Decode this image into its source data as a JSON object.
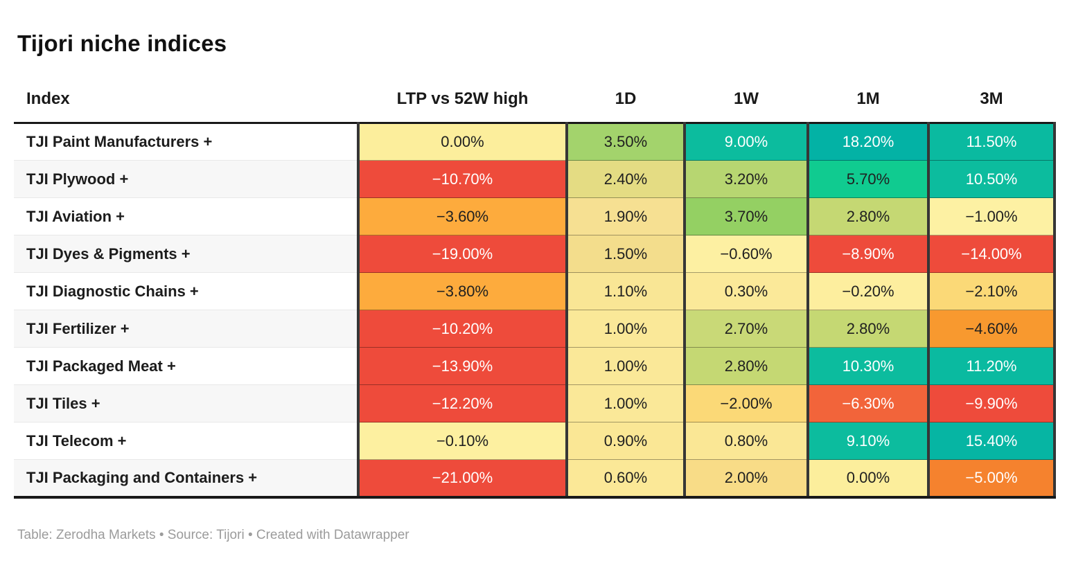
{
  "title": "Tijori niche indices",
  "footer": "Table: Zerodha Markets • Source: Tijori • Created with Datawrapper",
  "table": {
    "columns": [
      "Index",
      "LTP vs 52W high",
      "1D",
      "1W",
      "1M",
      "3M"
    ],
    "rows": [
      {
        "label": "TJI Paint Manufacturers +",
        "cells": [
          {
            "text": "0.00%",
            "bg": "#fcee9c",
            "fg": "#202020"
          },
          {
            "text": "3.50%",
            "bg": "#a3d36c",
            "fg": "#202020"
          },
          {
            "text": "9.00%",
            "bg": "#0cbc9e",
            "fg": "#ffffff"
          },
          {
            "text": "18.20%",
            "bg": "#03b2a5",
            "fg": "#ffffff"
          },
          {
            "text": "11.50%",
            "bg": "#0abaa0",
            "fg": "#ffffff"
          }
        ]
      },
      {
        "label": "TJI Plywood +",
        "cells": [
          {
            "text": "−10.70%",
            "bg": "#ee4b3b",
            "fg": "#ffffff"
          },
          {
            "text": "2.40%",
            "bg": "#e4dc83",
            "fg": "#202020"
          },
          {
            "text": "3.20%",
            "bg": "#b7d671",
            "fg": "#202020"
          },
          {
            "text": "5.70%",
            "bg": "#10cb90",
            "fg": "#202020"
          },
          {
            "text": "10.50%",
            "bg": "#0cbc9e",
            "fg": "#ffffff"
          }
        ]
      },
      {
        "label": "TJI Aviation +",
        "cells": [
          {
            "text": "−3.60%",
            "bg": "#fdab3d",
            "fg": "#202020"
          },
          {
            "text": "1.90%",
            "bg": "#f6e092",
            "fg": "#202020"
          },
          {
            "text": "3.70%",
            "bg": "#94d063",
            "fg": "#202020"
          },
          {
            "text": "2.80%",
            "bg": "#c5d873",
            "fg": "#202020"
          },
          {
            "text": "−1.00%",
            "bg": "#fdf1a3",
            "fg": "#202020"
          }
        ]
      },
      {
        "label": "TJI Dyes & Pigments +",
        "cells": [
          {
            "text": "−19.00%",
            "bg": "#ee4b3b",
            "fg": "#ffffff"
          },
          {
            "text": "1.50%",
            "bg": "#f3dd8c",
            "fg": "#202020"
          },
          {
            "text": "−0.60%",
            "bg": "#fdf0a2",
            "fg": "#202020"
          },
          {
            "text": "−8.90%",
            "bg": "#ee4b3b",
            "fg": "#ffffff"
          },
          {
            "text": "−14.00%",
            "bg": "#ee4b3b",
            "fg": "#ffffff"
          }
        ]
      },
      {
        "label": "TJI Diagnostic Chains +",
        "cells": [
          {
            "text": "−3.80%",
            "bg": "#fdab3d",
            "fg": "#202020"
          },
          {
            "text": "1.10%",
            "bg": "#f9e695",
            "fg": "#202020"
          },
          {
            "text": "0.30%",
            "bg": "#fbe999",
            "fg": "#202020"
          },
          {
            "text": "−0.20%",
            "bg": "#fdee9e",
            "fg": "#202020"
          },
          {
            "text": "−2.10%",
            "bg": "#fbd977",
            "fg": "#202020"
          }
        ]
      },
      {
        "label": "TJI Fertilizer +",
        "cells": [
          {
            "text": "−10.20%",
            "bg": "#ee4b3b",
            "fg": "#ffffff"
          },
          {
            "text": "1.00%",
            "bg": "#fae898",
            "fg": "#202020"
          },
          {
            "text": "2.70%",
            "bg": "#c9d977",
            "fg": "#202020"
          },
          {
            "text": "2.80%",
            "bg": "#c5d873",
            "fg": "#202020"
          },
          {
            "text": "−4.60%",
            "bg": "#f8992f",
            "fg": "#202020"
          }
        ]
      },
      {
        "label": "TJI Packaged Meat +",
        "cells": [
          {
            "text": "−13.90%",
            "bg": "#ee4b3b",
            "fg": "#ffffff"
          },
          {
            "text": "1.00%",
            "bg": "#fae898",
            "fg": "#202020"
          },
          {
            "text": "2.80%",
            "bg": "#c5d873",
            "fg": "#202020"
          },
          {
            "text": "10.30%",
            "bg": "#0cbc9e",
            "fg": "#ffffff"
          },
          {
            "text": "11.20%",
            "bg": "#0abaa0",
            "fg": "#ffffff"
          }
        ]
      },
      {
        "label": "TJI Tiles +",
        "cells": [
          {
            "text": "−12.20%",
            "bg": "#ee4b3b",
            "fg": "#ffffff"
          },
          {
            "text": "1.00%",
            "bg": "#fae898",
            "fg": "#202020"
          },
          {
            "text": "−2.00%",
            "bg": "#fbd977",
            "fg": "#202020"
          },
          {
            "text": "−6.30%",
            "bg": "#f2643a",
            "fg": "#ffffff"
          },
          {
            "text": "−9.90%",
            "bg": "#ee4b3b",
            "fg": "#ffffff"
          }
        ]
      },
      {
        "label": "TJI Telecom +",
        "cells": [
          {
            "text": "−0.10%",
            "bg": "#fdf0a0",
            "fg": "#202020"
          },
          {
            "text": "0.90%",
            "bg": "#fae795",
            "fg": "#202020"
          },
          {
            "text": "0.80%",
            "bg": "#fae795",
            "fg": "#202020"
          },
          {
            "text": "9.10%",
            "bg": "#0cbc9e",
            "fg": "#ffffff"
          },
          {
            "text": "15.40%",
            "bg": "#06b5a3",
            "fg": "#ffffff"
          }
        ]
      },
      {
        "label": "TJI Packaging and Containers +",
        "cells": [
          {
            "text": "−21.00%",
            "bg": "#ee4b3b",
            "fg": "#ffffff"
          },
          {
            "text": "0.60%",
            "bg": "#fbe897",
            "fg": "#202020"
          },
          {
            "text": "2.00%",
            "bg": "#f8dc87",
            "fg": "#202020"
          },
          {
            "text": "0.00%",
            "bg": "#fcee9c",
            "fg": "#202020"
          },
          {
            "text": "−5.00%",
            "bg": "#f5822e",
            "fg": "#ffffff"
          }
        ]
      }
    ]
  },
  "colors": {
    "positive_strong": "#0cbc9e",
    "positive_mid": "#a3d36c",
    "neutral": "#fcee9c",
    "negative_mid": "#fdab3d",
    "negative_strong": "#ee4b3b",
    "divider": "#363636",
    "row_alt": "#f7f7f7",
    "footer_text": "#9b9b9b"
  },
  "chart_data": {
    "type": "table",
    "title": "Tijori niche indices",
    "columns": [
      "Index",
      "LTP vs 52W high",
      "1D",
      "1W",
      "1M",
      "3M"
    ],
    "units": "%",
    "rows": [
      [
        "TJI Paint Manufacturers",
        0.0,
        3.5,
        9.0,
        18.2,
        11.5
      ],
      [
        "TJI Plywood",
        -10.7,
        2.4,
        3.2,
        5.7,
        10.5
      ],
      [
        "TJI Aviation",
        -3.6,
        1.9,
        3.7,
        2.8,
        -1.0
      ],
      [
        "TJI Dyes & Pigments",
        -19.0,
        1.5,
        -0.6,
        -8.9,
        -14.0
      ],
      [
        "TJI Diagnostic Chains",
        -3.8,
        1.1,
        0.3,
        -0.2,
        -2.1
      ],
      [
        "TJI Fertilizer",
        -10.2,
        1.0,
        2.7,
        2.8,
        -4.6
      ],
      [
        "TJI Packaged Meat",
        -13.9,
        1.0,
        2.8,
        10.3,
        11.2
      ],
      [
        "TJI Tiles",
        -12.2,
        1.0,
        -2.0,
        -6.3,
        -9.9
      ],
      [
        "TJI Telecom",
        -0.1,
        0.9,
        0.8,
        9.1,
        15.4
      ],
      [
        "TJI Packaging and Containers",
        -21.0,
        0.6,
        2.0,
        0.0,
        -5.0
      ]
    ]
  }
}
